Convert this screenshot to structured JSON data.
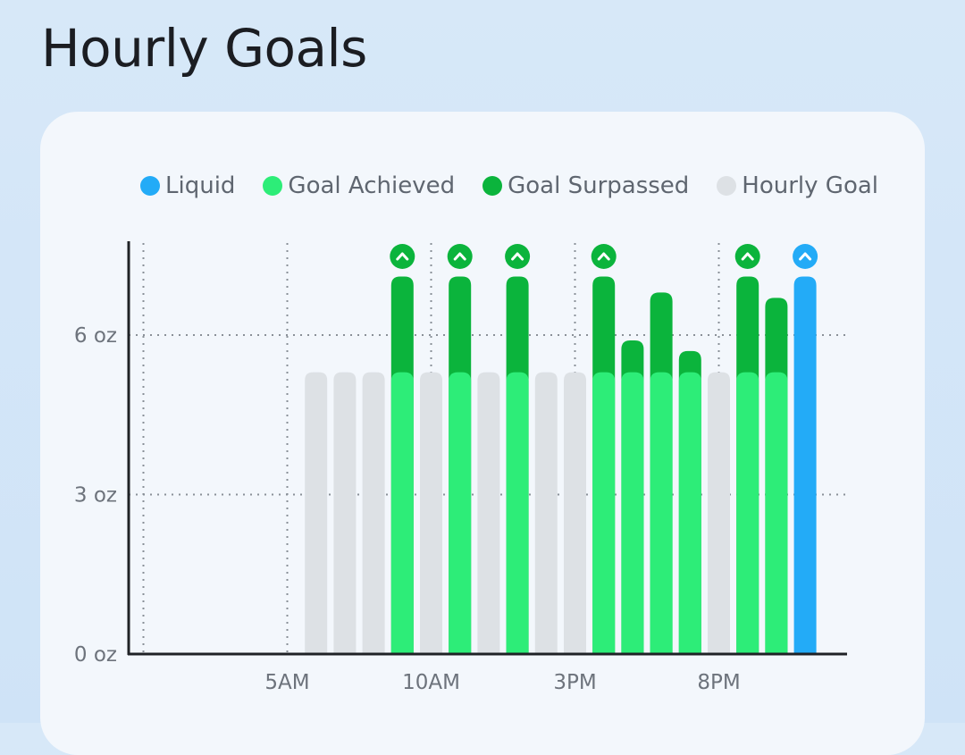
{
  "title": "Hourly Goals",
  "legend": [
    {
      "label": "Liquid",
      "color": "#23abf7"
    },
    {
      "label": "Goal Achieved",
      "color": "#2ded78"
    },
    {
      "label": "Goal Surpassed",
      "color": "#0bb43c"
    },
    {
      "label": "Hourly Goal",
      "color": "#dde1e5"
    }
  ],
  "chart_data": {
    "type": "bar",
    "title": "Hourly Goals",
    "ylabel": "",
    "xlabel": "",
    "unit": "oz",
    "ylim": [
      0,
      8
    ],
    "yticks": [
      0,
      3,
      6
    ],
    "ytick_labels": [
      "0 oz",
      "3 oz",
      "6 oz"
    ],
    "xtick_labels": [
      {
        "label": "5AM",
        "hour": 5
      },
      {
        "label": "10AM",
        "hour": 10
      },
      {
        "label": "3PM",
        "hour": 15
      },
      {
        "label": "8PM",
        "hour": 20
      }
    ],
    "hourly_goal": 5.3,
    "grid": true,
    "legend_position": "top",
    "hours": [
      0,
      1,
      2,
      3,
      4,
      5,
      6,
      7,
      8,
      9,
      10,
      11,
      12,
      13,
      14,
      15,
      16,
      17,
      18,
      19,
      20,
      21,
      22,
      23,
      24
    ],
    "series": [
      {
        "name": "Hourly Goal",
        "color": "#dde1e5",
        "values": [
          0,
          0,
          0,
          0,
          0,
          0,
          5.3,
          5.3,
          5.3,
          5.3,
          5.3,
          5.3,
          5.3,
          5.3,
          5.3,
          5.3,
          5.3,
          5.3,
          5.3,
          5.3,
          5.3,
          5.3,
          5.3,
          5.3,
          0
        ]
      },
      {
        "name": "Goal Achieved",
        "color": "#2ded78",
        "values": [
          0,
          0,
          0,
          0,
          0,
          0,
          0,
          0,
          0,
          5.3,
          0,
          5.3,
          0,
          5.3,
          0,
          0,
          5.3,
          5.3,
          5.3,
          5.3,
          0,
          5.3,
          5.3,
          0,
          0
        ]
      },
      {
        "name": "Goal Surpassed",
        "color": "#0bb43c",
        "values": [
          0,
          0,
          0,
          0,
          0,
          0,
          0,
          0,
          0,
          7.1,
          0,
          7.1,
          0,
          7.1,
          0,
          0,
          7.1,
          5.9,
          6.8,
          5.7,
          0,
          7.1,
          6.7,
          0,
          0
        ]
      },
      {
        "name": "Liquid",
        "color": "#23abf7",
        "values": [
          0,
          0,
          0,
          0,
          0,
          0,
          0,
          0,
          0,
          0,
          0,
          0,
          0,
          0,
          0,
          0,
          0,
          0,
          0,
          0,
          0,
          0,
          0,
          7.1,
          0
        ]
      }
    ],
    "goal_markers_hours": [
      9,
      11,
      13,
      16,
      21,
      23
    ]
  }
}
